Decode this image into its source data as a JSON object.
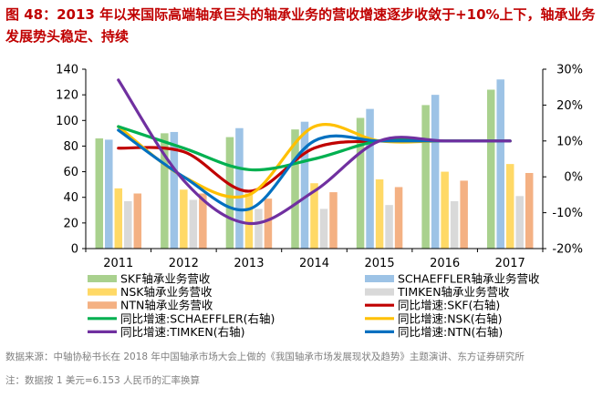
{
  "title": "图 48：2013 年以来国际高端轴承巨头的轴承业务的营收增速逐步收敛于+10%上下，轴承业务发展势头稳定、持续",
  "source": "数据来源：中轴协秘书长在 2018 年中国轴承市场大会上做的《我国轴承市场发展现状及趋势》主题演讲、东方证券研究所",
  "note": "注：数据按 1 美元=6.153 人民币的汇率换算",
  "chart_data": {
    "type": "bar",
    "categories": [
      "2011",
      "2012",
      "2013",
      "2014",
      "2015",
      "2016",
      "2017"
    ],
    "ylim": [
      0,
      140
    ],
    "yticks": [
      0,
      20,
      40,
      60,
      80,
      100,
      120,
      140
    ],
    "y2lim": [
      -0.2,
      0.3
    ],
    "y2ticks": [
      "-20%",
      "-10%",
      "0%",
      "10%",
      "20%",
      "30%"
    ],
    "grid": false,
    "legend_position": "bottom",
    "bar_series": [
      {
        "name": "SKF轴承业务营收",
        "color": "#a9d18e",
        "values": [
          86,
          90,
          87,
          93,
          102,
          112,
          124
        ]
      },
      {
        "name": "SCHAEFFLER轴承业务营收",
        "color": "#9dc3e6",
        "values": [
          85,
          91,
          94,
          99,
          109,
          120,
          132
        ]
      },
      {
        "name": "NSK轴承业务营收",
        "color": "#ffd966",
        "values": [
          47,
          46,
          43,
          51,
          54,
          60,
          66
        ]
      },
      {
        "name": "TIMKEN轴承业务营收",
        "color": "#d9d9d9",
        "values": [
          37,
          38,
          31,
          31,
          34,
          37,
          41
        ]
      },
      {
        "name": "NTN轴承业务营收",
        "color": "#f4b183",
        "values": [
          43,
          43,
          39,
          44,
          48,
          53,
          59
        ]
      }
    ],
    "line_series": [
      {
        "name": "同比增速:SKF(右轴)",
        "color": "#c00000",
        "values": [
          0.08,
          0.07,
          -0.04,
          0.08,
          0.1,
          0.1,
          0.1
        ]
      },
      {
        "name": "同比增速:NSK(右轴)",
        "color": "#ffc000",
        "values": [
          0.14,
          0.0,
          -0.05,
          0.14,
          0.1,
          0.1,
          0.1
        ]
      },
      {
        "name": "同比增速:SCHAEFFLER(右轴)",
        "color": "#00b050",
        "values": [
          0.14,
          0.08,
          0.02,
          0.05,
          0.1,
          0.1,
          0.1
        ]
      },
      {
        "name": "同比增速:NTN(右轴)",
        "color": "#0070c0",
        "values": [
          0.13,
          0.0,
          -0.09,
          0.1,
          0.1,
          0.1,
          0.1
        ]
      },
      {
        "name": "同比增速:TIMKEN(右轴)",
        "color": "#7030a0",
        "values": [
          0.27,
          -0.01,
          -0.13,
          -0.04,
          0.1,
          0.1,
          0.1
        ]
      }
    ],
    "legend_order": [
      {
        "kind": "bar",
        "series": "SKF轴承业务营收"
      },
      {
        "kind": "bar",
        "series": "SCHAEFFLER轴承业务营收"
      },
      {
        "kind": "bar",
        "series": "NSK轴承业务营收"
      },
      {
        "kind": "bar",
        "series": "TIMKEN轴承业务营收"
      },
      {
        "kind": "bar",
        "series": "NTN轴承业务营收"
      },
      {
        "kind": "line",
        "series": "同比增速:SKF(右轴)"
      },
      {
        "kind": "line",
        "series": "同比增速:SCHAEFFLER(右轴)"
      },
      {
        "kind": "line",
        "series": "同比增速:NSK(右轴)"
      },
      {
        "kind": "line",
        "series": "同比增速:TIMKEN(右轴)"
      },
      {
        "kind": "line",
        "series": "同比增速:NTN(右轴)"
      }
    ]
  }
}
